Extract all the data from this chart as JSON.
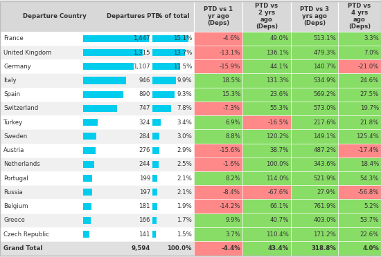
{
  "rows": [
    {
      "country": "France",
      "departures": 1447,
      "pct": "15.1%",
      "vs1": "-4.6%",
      "vs2": "49.0%",
      "vs3": "513.1%",
      "vs4": "3.3%",
      "vs1_neg": true,
      "vs2_neg": false,
      "vs3_neg": false,
      "vs4_neg": false
    },
    {
      "country": "United Kingdom",
      "departures": 1315,
      "pct": "13.7%",
      "vs1": "-13.1%",
      "vs2": "136.1%",
      "vs3": "479.3%",
      "vs4": "7.0%",
      "vs1_neg": true,
      "vs2_neg": false,
      "vs3_neg": false,
      "vs4_neg": false
    },
    {
      "country": "Germany",
      "departures": 1107,
      "pct": "11.5%",
      "vs1": "-15.9%",
      "vs2": "44.1%",
      "vs3": "140.7%",
      "vs4": "-21.0%",
      "vs1_neg": true,
      "vs2_neg": false,
      "vs3_neg": false,
      "vs4_neg": true
    },
    {
      "country": "Italy",
      "departures": 946,
      "pct": "9.9%",
      "vs1": "18.5%",
      "vs2": "131.3%",
      "vs3": "534.9%",
      "vs4": "24.6%",
      "vs1_neg": false,
      "vs2_neg": false,
      "vs3_neg": false,
      "vs4_neg": false
    },
    {
      "country": "Spain",
      "departures": 890,
      "pct": "9.3%",
      "vs1": "15.3%",
      "vs2": "23.6%",
      "vs3": "569.2%",
      "vs4": "27.5%",
      "vs1_neg": false,
      "vs2_neg": false,
      "vs3_neg": false,
      "vs4_neg": false
    },
    {
      "country": "Switzerland",
      "departures": 747,
      "pct": "7.8%",
      "vs1": "-7.3%",
      "vs2": "55.3%",
      "vs3": "573.0%",
      "vs4": "19.7%",
      "vs1_neg": true,
      "vs2_neg": false,
      "vs3_neg": false,
      "vs4_neg": false
    },
    {
      "country": "Turkey",
      "departures": 324,
      "pct": "3.4%",
      "vs1": "6.9%",
      "vs2": "-16.5%",
      "vs3": "217.6%",
      "vs4": "21.8%",
      "vs1_neg": false,
      "vs2_neg": true,
      "vs3_neg": false,
      "vs4_neg": false
    },
    {
      "country": "Sweden",
      "departures": 284,
      "pct": "3.0%",
      "vs1": "8.8%",
      "vs2": "120.2%",
      "vs3": "149.1%",
      "vs4": "125.4%",
      "vs1_neg": false,
      "vs2_neg": false,
      "vs3_neg": false,
      "vs4_neg": false
    },
    {
      "country": "Austria",
      "departures": 276,
      "pct": "2.9%",
      "vs1": "-15.6%",
      "vs2": "38.7%",
      "vs3": "487.2%",
      "vs4": "-17.4%",
      "vs1_neg": true,
      "vs2_neg": false,
      "vs3_neg": false,
      "vs4_neg": true
    },
    {
      "country": "Netherlands",
      "departures": 244,
      "pct": "2.5%",
      "vs1": "-1.6%",
      "vs2": "100.0%",
      "vs3": "343.6%",
      "vs4": "18.4%",
      "vs1_neg": true,
      "vs2_neg": false,
      "vs3_neg": false,
      "vs4_neg": false
    },
    {
      "country": "Portugal",
      "departures": 199,
      "pct": "2.1%",
      "vs1": "8.2%",
      "vs2": "114.0%",
      "vs3": "521.9%",
      "vs4": "54.3%",
      "vs1_neg": false,
      "vs2_neg": false,
      "vs3_neg": false,
      "vs4_neg": false
    },
    {
      "country": "Russia",
      "departures": 197,
      "pct": "2.1%",
      "vs1": "-8.4%",
      "vs2": "-67.6%",
      "vs3": "27.9%",
      "vs4": "-56.8%",
      "vs1_neg": true,
      "vs2_neg": true,
      "vs3_neg": false,
      "vs4_neg": true
    },
    {
      "country": "Belgium",
      "departures": 181,
      "pct": "1.9%",
      "vs1": "-14.2%",
      "vs2": "66.1%",
      "vs3": "761.9%",
      "vs4": "5.2%",
      "vs1_neg": true,
      "vs2_neg": false,
      "vs3_neg": false,
      "vs4_neg": false
    },
    {
      "country": "Greece",
      "departures": 166,
      "pct": "1.7%",
      "vs1": "9.9%",
      "vs2": "40.7%",
      "vs3": "403.0%",
      "vs4": "53.7%",
      "vs1_neg": false,
      "vs2_neg": false,
      "vs3_neg": false,
      "vs4_neg": false
    },
    {
      "country": "Czech Republic",
      "departures": 141,
      "pct": "1.5%",
      "vs1": "3.7%",
      "vs2": "110.4%",
      "vs3": "171.2%",
      "vs4": "22.6%",
      "vs1_neg": false,
      "vs2_neg": false,
      "vs3_neg": false,
      "vs4_neg": false
    }
  ],
  "grand_total": {
    "country": "Grand Total",
    "departures": 9594,
    "pct": "100.0%",
    "vs1": "-4.4%",
    "vs2": "43.4%",
    "vs3": "318.8%",
    "vs4": "4.0%",
    "vs1_neg": true,
    "vs2_neg": false,
    "vs3_neg": false,
    "vs4_neg": false
  },
  "max_departures": 1447,
  "bar_color": "#00ccee",
  "green_bg": "#88dd66",
  "red_bg": "#ff8888",
  "header_bg": "#d8d8d8",
  "row_bg_even": "#ffffff",
  "row_bg_odd": "#f0f0f0",
  "grand_total_bg": "#e0e0e0",
  "text_color": "#333333",
  "figure_bg": "#e8e8e8"
}
